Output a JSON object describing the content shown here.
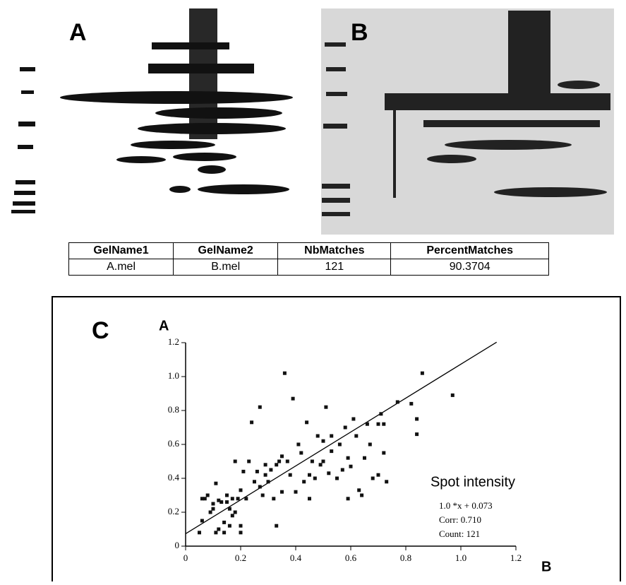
{
  "panels": {
    "a": "A",
    "b": "B"
  },
  "table": {
    "header": [
      "GelName1",
      "GelName2",
      "NbMatches",
      "PercentMatches"
    ],
    "rows": [
      [
        "A.mel",
        "B.mel",
        "121",
        "90.3704"
      ]
    ]
  },
  "chart_data": {
    "type": "scatter",
    "panel": "C",
    "x_label": "B",
    "y_label": "A",
    "x": [
      0.05,
      0.06,
      0.07,
      0.08,
      0.09,
      0.1,
      0.1,
      0.11,
      0.12,
      0.12,
      0.13,
      0.14,
      0.14,
      0.15,
      0.15,
      0.16,
      0.17,
      0.17,
      0.18,
      0.18,
      0.19,
      0.2,
      0.2,
      0.2,
      0.21,
      0.22,
      0.23,
      0.24,
      0.25,
      0.26,
      0.27,
      0.27,
      0.28,
      0.29,
      0.3,
      0.31,
      0.32,
      0.33,
      0.33,
      0.34,
      0.35,
      0.35,
      0.36,
      0.37,
      0.38,
      0.39,
      0.4,
      0.41,
      0.42,
      0.43,
      0.44,
      0.45,
      0.45,
      0.46,
      0.47,
      0.48,
      0.49,
      0.5,
      0.51,
      0.52,
      0.53,
      0.55,
      0.56,
      0.57,
      0.58,
      0.59,
      0.6,
      0.61,
      0.62,
      0.63,
      0.64,
      0.65,
      0.66,
      0.67,
      0.68,
      0.7,
      0.71,
      0.72,
      0.72,
      0.73,
      0.77,
      0.82,
      0.84,
      0.84,
      0.86,
      0.97,
      0.06,
      0.11,
      0.16,
      0.29,
      0.53,
      0.5,
      0.7,
      0.59
    ],
    "values": [
      0.08,
      0.15,
      0.28,
      0.3,
      0.2,
      0.25,
      0.22,
      0.37,
      0.1,
      0.27,
      0.26,
      0.14,
      0.08,
      0.26,
      0.3,
      0.22,
      0.28,
      0.18,
      0.5,
      0.2,
      0.28,
      0.12,
      0.08,
      0.33,
      0.44,
      0.28,
      0.5,
      0.73,
      0.38,
      0.44,
      0.82,
      0.35,
      0.3,
      0.48,
      0.38,
      0.45,
      0.28,
      0.12,
      0.48,
      0.5,
      0.53,
      0.32,
      1.02,
      0.5,
      0.42,
      0.87,
      0.32,
      0.6,
      0.55,
      0.38,
      0.73,
      0.28,
      0.42,
      0.5,
      0.4,
      0.65,
      0.48,
      0.62,
      0.82,
      0.43,
      0.56,
      0.4,
      0.6,
      0.45,
      0.7,
      0.28,
      0.47,
      0.75,
      0.65,
      0.33,
      0.3,
      0.52,
      0.72,
      0.6,
      0.4,
      0.72,
      0.78,
      0.55,
      0.72,
      0.38,
      0.85,
      0.84,
      0.66,
      0.75,
      1.02,
      0.89,
      0.28,
      0.08,
      0.12,
      0.42,
      0.65,
      0.5,
      0.42,
      0.52
    ],
    "color": "#111111",
    "fit_line": {
      "x": [
        0,
        1.13
      ],
      "y": [
        0.073,
        1.203
      ]
    },
    "xlim": [
      0,
      1.2
    ],
    "ylim": [
      0,
      1.2
    ],
    "xticks": [
      0,
      0.2,
      0.4,
      0.6,
      0.8,
      {
        "value": 1,
        "label": "1.0"
      },
      1.2
    ],
    "yticks": [
      0,
      0.2,
      0.4,
      0.6,
      0.8,
      {
        "value": 1,
        "label": "1.0"
      },
      1.2
    ],
    "annotations": [
      "Spot intensity",
      "1.0 *x + 0.073",
      "Corr: 0.710",
      "Count: 121"
    ]
  }
}
